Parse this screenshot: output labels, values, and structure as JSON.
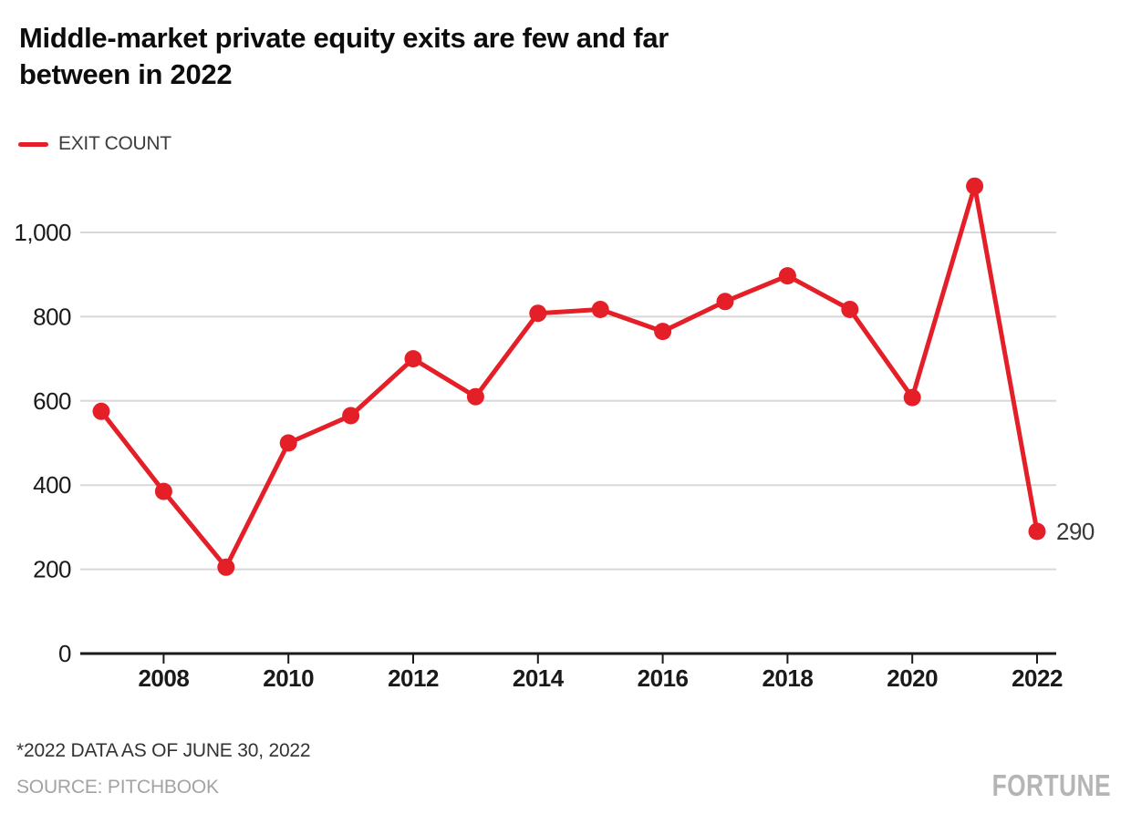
{
  "header": {
    "title_line1": "Middle-market private equity exits are few and far",
    "title_line2": "between in 2022"
  },
  "legend": {
    "items": [
      {
        "label": "EXIT COUNT",
        "color": "#e41f28"
      }
    ]
  },
  "colors": {
    "series": "#e41f28",
    "grid": "#d8d8d8",
    "axis": "#1a1a1a",
    "title_text": "#0d0d0d",
    "annotation_text": "#3a3a3a",
    "source_text": "#a3a3a3",
    "brand_text": "#b5b5b5"
  },
  "chart_data": {
    "type": "line",
    "title": "Middle-market private equity exits are few and far between in 2022",
    "series_name": "EXIT COUNT",
    "years": [
      2007,
      2008,
      2009,
      2010,
      2011,
      2012,
      2013,
      2014,
      2015,
      2016,
      2017,
      2018,
      2019,
      2020,
      2021,
      2022
    ],
    "values": [
      575,
      385,
      205,
      500,
      565,
      700,
      610,
      808,
      817,
      765,
      836,
      897,
      817,
      608,
      1110,
      290
    ],
    "end_label": "290",
    "xlabel": "",
    "ylabel": "",
    "ylim": [
      0,
      1150
    ],
    "grid": true,
    "legend_position": "top-left",
    "y_ticks": [
      {
        "value": 0,
        "label": "0"
      },
      {
        "value": 200,
        "label": "200"
      },
      {
        "value": 400,
        "label": "400"
      },
      {
        "value": 600,
        "label": "600"
      },
      {
        "value": 800,
        "label": "800"
      },
      {
        "value": 1000,
        "label": "1,000"
      }
    ],
    "x_ticks": [
      {
        "year": 2008,
        "label": "2008"
      },
      {
        "year": 2010,
        "label": "2010"
      },
      {
        "year": 2012,
        "label": "2012"
      },
      {
        "year": 2014,
        "label": "2014"
      },
      {
        "year": 2016,
        "label": "2016"
      },
      {
        "year": 2018,
        "label": "2018"
      },
      {
        "year": 2020,
        "label": "2020"
      },
      {
        "year": 2022,
        "label": "2022"
      }
    ]
  },
  "footnote": "*2022 DATA AS OF JUNE 30, 2022",
  "source": "SOURCE: PITCHBOOK",
  "brand": "FORTUNE"
}
